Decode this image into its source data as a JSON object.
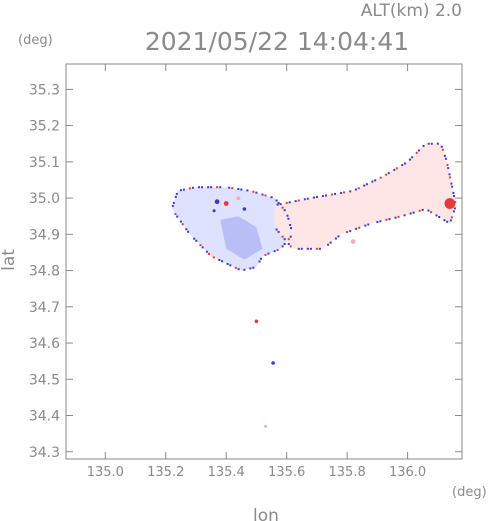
{
  "chart_data": {
    "type": "heatmap",
    "title": "2021/05/22 14:04:41",
    "subtitle": "ALT(km) 2.0",
    "xlabel": "lon",
    "ylabel": "lat",
    "x_unit": "(deg)",
    "y_unit": "(deg)",
    "xlim": [
      134.87,
      136.18
    ],
    "ylim": [
      34.28,
      35.37
    ],
    "x_ticks": [
      135.0,
      135.2,
      135.4,
      135.6,
      135.8,
      136.0
    ],
    "x_tick_labels": [
      "135.0",
      "135.2",
      "135.4",
      "135.6",
      "135.8",
      "136.0"
    ],
    "y_ticks": [
      34.3,
      34.4,
      34.5,
      34.6,
      34.7,
      34.8,
      34.9,
      35.0,
      35.1,
      35.2,
      35.3
    ],
    "y_tick_labels": [
      "34.3",
      "34.4",
      "34.5",
      "34.6",
      "34.7",
      "34.8",
      "34.9",
      "35.0",
      "35.1",
      "35.2",
      "35.3"
    ],
    "grid": false,
    "colors": {
      "negative_light": "#dfe2ff",
      "negative_mid": "#b9bff5",
      "negative_strong": "#3a3acc",
      "positive_light": "#ffe6e6",
      "positive_mid": "#f6b0b0",
      "positive_strong": "#e53a3a"
    },
    "regions": [
      {
        "name": "west-lobe",
        "sign": "negative",
        "intensity": "light",
        "lon": [
          135.24,
          135.3,
          135.4,
          135.48,
          135.56,
          135.6,
          135.62,
          135.58,
          135.52,
          135.5,
          135.45,
          135.35,
          135.28,
          135.22,
          135.24
        ],
        "lat": [
          35.02,
          35.03,
          35.03,
          35.02,
          35.0,
          34.96,
          34.9,
          34.86,
          34.84,
          34.81,
          34.8,
          34.84,
          34.9,
          34.97,
          35.02
        ]
      },
      {
        "name": "east-band",
        "sign": "positive",
        "intensity": "light",
        "lon": [
          135.56,
          135.68,
          135.82,
          135.92,
          136.0,
          136.06,
          136.11,
          136.13,
          136.16,
          136.14,
          136.06,
          135.98,
          135.88,
          135.78,
          135.72,
          135.62,
          135.56
        ],
        "lat": [
          34.98,
          35.0,
          35.02,
          35.06,
          35.1,
          35.15,
          35.15,
          35.1,
          34.98,
          34.93,
          34.97,
          34.95,
          34.93,
          34.9,
          34.86,
          34.86,
          34.92
        ]
      },
      {
        "name": "west-core",
        "sign": "negative",
        "intensity": "mid",
        "lon": [
          135.38,
          135.44,
          135.5,
          135.52,
          135.46,
          135.4,
          135.38
        ],
        "lat": [
          34.94,
          34.95,
          34.92,
          34.86,
          34.83,
          34.86,
          34.94
        ]
      }
    ],
    "cells": [
      {
        "lon": 136.14,
        "lat": 34.985,
        "value_sign": "positive",
        "intensity": "strong",
        "r": 0.018
      },
      {
        "lon": 135.82,
        "lat": 34.88,
        "value_sign": "positive",
        "intensity": "mid",
        "r": 0.008
      },
      {
        "lon": 135.5,
        "lat": 34.66,
        "value_sign": "positive",
        "intensity": "strong",
        "r": 0.006
      },
      {
        "lon": 135.555,
        "lat": 34.545,
        "value_sign": "negative",
        "intensity": "strong",
        "r": 0.006
      },
      {
        "lon": 135.37,
        "lat": 34.99,
        "value_sign": "negative",
        "intensity": "strong",
        "r": 0.008
      },
      {
        "lon": 135.4,
        "lat": 34.985,
        "value_sign": "positive",
        "intensity": "strong",
        "r": 0.008
      },
      {
        "lon": 135.44,
        "lat": 35.0,
        "value_sign": "positive",
        "intensity": "mid",
        "r": 0.007
      },
      {
        "lon": 135.46,
        "lat": 34.97,
        "value_sign": "negative",
        "intensity": "strong",
        "r": 0.006
      },
      {
        "lon": 135.36,
        "lat": 34.965,
        "value_sign": "negative",
        "intensity": "strong",
        "r": 0.005
      },
      {
        "lon": 135.53,
        "lat": 34.37,
        "value_sign": "negative",
        "intensity": "mid",
        "r": 0.003
      }
    ]
  }
}
